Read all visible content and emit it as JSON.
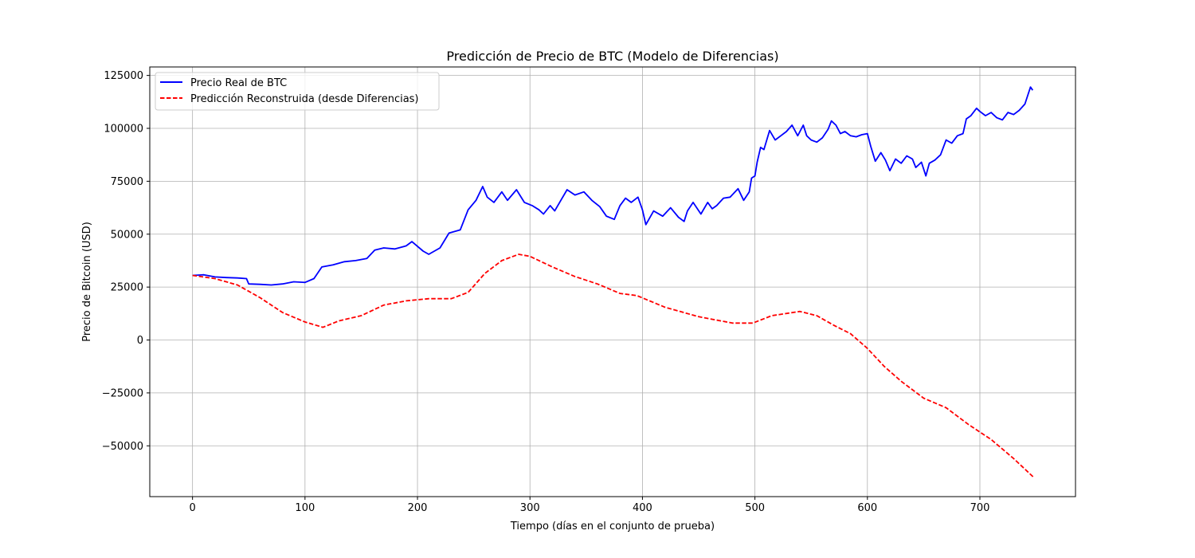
{
  "chart_data": {
    "type": "line",
    "title": "Predicción de Precio de BTC (Modelo de Diferencias)",
    "xlabel": "Tiempo (días en el conjunto de prueba)",
    "ylabel": "Precio de Bitcoin (USD)",
    "xlim": [
      -38,
      785
    ],
    "ylim": [
      -74000,
      129000
    ],
    "xticks": [
      0,
      100,
      200,
      300,
      400,
      500,
      600,
      700
    ],
    "yticks": [
      -50000,
      -25000,
      0,
      25000,
      50000,
      75000,
      100000,
      125000
    ],
    "xtick_labels": [
      "0",
      "100",
      "200",
      "300",
      "400",
      "500",
      "600",
      "700"
    ],
    "ytick_labels": [
      "−50000",
      "−25000",
      "0",
      "25000",
      "50000",
      "75000",
      "100000",
      "125000"
    ],
    "grid": true,
    "legend_position": "top-left",
    "series": [
      {
        "name": "Precio Real de BTC",
        "color": "#0000ff",
        "style": "solid",
        "points": [
          [
            0,
            30500
          ],
          [
            10,
            30800
          ],
          [
            20,
            29800
          ],
          [
            30,
            29500
          ],
          [
            40,
            29300
          ],
          [
            48,
            29000
          ],
          [
            50,
            26500
          ],
          [
            60,
            26300
          ],
          [
            70,
            26000
          ],
          [
            80,
            26500
          ],
          [
            90,
            27500
          ],
          [
            100,
            27200
          ],
          [
            108,
            29000
          ],
          [
            115,
            34500
          ],
          [
            125,
            35500
          ],
          [
            135,
            37000
          ],
          [
            145,
            37500
          ],
          [
            155,
            38500
          ],
          [
            162,
            42500
          ],
          [
            170,
            43500
          ],
          [
            180,
            43000
          ],
          [
            190,
            44500
          ],
          [
            195,
            46500
          ],
          [
            205,
            42000
          ],
          [
            210,
            40500
          ],
          [
            220,
            43500
          ],
          [
            228,
            50500
          ],
          [
            238,
            52000
          ],
          [
            245,
            61500
          ],
          [
            252,
            66000
          ],
          [
            258,
            72500
          ],
          [
            262,
            67500
          ],
          [
            268,
            65000
          ],
          [
            275,
            70000
          ],
          [
            280,
            66000
          ],
          [
            288,
            71000
          ],
          [
            295,
            65000
          ],
          [
            302,
            63500
          ],
          [
            308,
            61500
          ],
          [
            312,
            59500
          ],
          [
            318,
            63500
          ],
          [
            322,
            61000
          ],
          [
            328,
            66500
          ],
          [
            333,
            71000
          ],
          [
            340,
            68500
          ],
          [
            348,
            70000
          ],
          [
            355,
            66000
          ],
          [
            362,
            63000
          ],
          [
            368,
            58500
          ],
          [
            375,
            57000
          ],
          [
            380,
            63500
          ],
          [
            385,
            67000
          ],
          [
            390,
            65000
          ],
          [
            396,
            67500
          ],
          [
            400,
            61500
          ],
          [
            403,
            54500
          ],
          [
            410,
            61000
          ],
          [
            418,
            58500
          ],
          [
            425,
            62500
          ],
          [
            432,
            58000
          ],
          [
            437,
            56000
          ],
          [
            440,
            61000
          ],
          [
            445,
            65000
          ],
          [
            452,
            59500
          ],
          [
            458,
            65000
          ],
          [
            462,
            62000
          ],
          [
            466,
            63500
          ],
          [
            472,
            67000
          ],
          [
            478,
            67500
          ],
          [
            485,
            71500
          ],
          [
            490,
            66000
          ],
          [
            495,
            70000
          ],
          [
            497,
            76500
          ],
          [
            500,
            77500
          ],
          [
            502,
            84000
          ],
          [
            505,
            91000
          ],
          [
            508,
            90000
          ],
          [
            513,
            99000
          ],
          [
            518,
            94500
          ],
          [
            523,
            96500
          ],
          [
            528,
            98500
          ],
          [
            533,
            101500
          ],
          [
            538,
            96500
          ],
          [
            543,
            101500
          ],
          [
            546,
            96500
          ],
          [
            550,
            94500
          ],
          [
            555,
            93500
          ],
          [
            560,
            95500
          ],
          [
            565,
            99500
          ],
          [
            568,
            103500
          ],
          [
            572,
            101500
          ],
          [
            576,
            97500
          ],
          [
            580,
            98500
          ],
          [
            585,
            96500
          ],
          [
            590,
            96000
          ],
          [
            595,
            97000
          ],
          [
            600,
            97500
          ],
          [
            603,
            91500
          ],
          [
            607,
            84500
          ],
          [
            612,
            88500
          ],
          [
            616,
            85000
          ],
          [
            620,
            80000
          ],
          [
            625,
            85500
          ],
          [
            630,
            83500
          ],
          [
            635,
            87000
          ],
          [
            640,
            85500
          ],
          [
            643,
            81500
          ],
          [
            648,
            84000
          ],
          [
            652,
            77500
          ],
          [
            655,
            83500
          ],
          [
            660,
            85000
          ],
          [
            665,
            87500
          ],
          [
            670,
            94500
          ],
          [
            675,
            93000
          ],
          [
            680,
            96500
          ],
          [
            685,
            97500
          ],
          [
            688,
            104500
          ],
          [
            692,
            106000
          ],
          [
            697,
            109500
          ],
          [
            700,
            108000
          ],
          [
            705,
            106000
          ],
          [
            710,
            107500
          ],
          [
            715,
            105000
          ],
          [
            720,
            104000
          ],
          [
            725,
            107500
          ],
          [
            730,
            106500
          ],
          [
            735,
            108500
          ],
          [
            740,
            111500
          ],
          [
            745,
            119500
          ],
          [
            747,
            118000
          ]
        ]
      },
      {
        "name": "Predicción Reconstruida (desde Diferencias)",
        "color": "#ff0000",
        "style": "dashed",
        "points": [
          [
            0,
            30500
          ],
          [
            20,
            29000
          ],
          [
            40,
            26000
          ],
          [
            60,
            20000
          ],
          [
            80,
            13000
          ],
          [
            100,
            8500
          ],
          [
            116,
            6000
          ],
          [
            130,
            9000
          ],
          [
            150,
            11500
          ],
          [
            170,
            16500
          ],
          [
            190,
            18500
          ],
          [
            210,
            19500
          ],
          [
            230,
            19500
          ],
          [
            245,
            22500
          ],
          [
            260,
            31500
          ],
          [
            275,
            37500
          ],
          [
            290,
            40500
          ],
          [
            300,
            39500
          ],
          [
            320,
            34500
          ],
          [
            340,
            30000
          ],
          [
            360,
            26500
          ],
          [
            380,
            22000
          ],
          [
            395,
            21000
          ],
          [
            420,
            15500
          ],
          [
            450,
            11000
          ],
          [
            480,
            8000
          ],
          [
            498,
            8000
          ],
          [
            515,
            11500
          ],
          [
            540,
            13500
          ],
          [
            555,
            11500
          ],
          [
            570,
            7000
          ],
          [
            585,
            3000
          ],
          [
            600,
            -4000
          ],
          [
            615,
            -12500
          ],
          [
            630,
            -19500
          ],
          [
            650,
            -27500
          ],
          [
            670,
            -32000
          ],
          [
            690,
            -40000
          ],
          [
            710,
            -47000
          ],
          [
            730,
            -56000
          ],
          [
            748,
            -65000
          ]
        ]
      }
    ]
  }
}
